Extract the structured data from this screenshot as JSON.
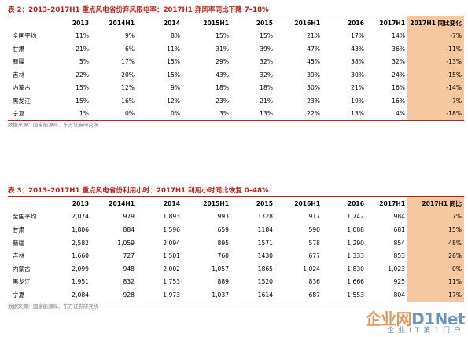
{
  "table1": {
    "title": "表 2：2013–2017H1 重点风电省份弃风限电率：2017H1 弃风率同比下降 7–18%",
    "header": [
      "",
      "2013",
      "2014H1",
      "2014",
      "2015H1",
      "2015",
      "2016H1",
      "2016",
      "2017H1",
      "2017H1 同比变化"
    ],
    "rows": [
      [
        "全国平均",
        "11%",
        "9%",
        "8%",
        "15%",
        "15%",
        "21%",
        "17%",
        "14%",
        "-7%"
      ],
      [
        "甘肃",
        "21%",
        "6%",
        "11%",
        "31%",
        "39%",
        "47%",
        "43%",
        "36%",
        "-11%"
      ],
      [
        "新疆",
        "5%",
        "17%",
        "15%",
        "29%",
        "32%",
        "45%",
        "38%",
        "32%",
        "-13%"
      ],
      [
        "吉林",
        "22%",
        "20%",
        "15%",
        "43%",
        "32%",
        "39%",
        "30%",
        "24%",
        "-15%"
      ],
      [
        "内蒙古",
        "15%",
        "12%",
        "9%",
        "18%",
        "18%",
        "30%",
        "21%",
        "16%",
        "-14%"
      ],
      [
        "黑龙江",
        "15%",
        "16%",
        "12%",
        "23%",
        "21%",
        "23%",
        "19%",
        "16%",
        "-7%"
      ],
      [
        "宁夏",
        "1%",
        "0%",
        "0%",
        "3%",
        "13%",
        "22%",
        "13%",
        "4%",
        "-18%"
      ]
    ],
    "source": "数据来源：国家能源局、东方证券研究所"
  },
  "table2": {
    "title": "表 3：2013–2017H1 重点风电省份利用小时：2017H1 利用小时同比恢复 0–48%",
    "header": [
      "",
      "2013",
      "2014H1",
      "2014",
      "2015H1",
      "2015",
      "2016H1",
      "2016",
      "2017H1",
      "2017H1 同比"
    ],
    "rows": [
      [
        "全国平均",
        "2,074",
        "979",
        "1,893",
        "993",
        "1728",
        "917",
        "1,742",
        "984",
        "7%"
      ],
      [
        "甘肃",
        "1,806",
        "884",
        "1,596",
        "659",
        "1184",
        "590",
        "1,088",
        "681",
        "15%"
      ],
      [
        "新疆",
        "2,582",
        "1,059",
        "2,094",
        "895",
        "1571",
        "578",
        "1,290",
        "854",
        "48%"
      ],
      [
        "吉林",
        "1,660",
        "727",
        "1,501",
        "760",
        "1430",
        "677",
        "1,333",
        "853",
        "26%"
      ],
      [
        "内蒙古",
        "2,099",
        "948",
        "2,002",
        "1,057",
        "1865",
        "1,024",
        "1,830",
        "1,023",
        "0%"
      ],
      [
        "黑龙江",
        "1,951",
        "832",
        "1,753",
        "889",
        "1520",
        "836",
        "1,666",
        "925",
        "11%"
      ],
      [
        "宁夏",
        "2,084",
        "928",
        "1,973",
        "1,037",
        "1614",
        "687",
        "1,553",
        "804",
        "17%"
      ]
    ],
    "source": "数据来源：国家能源局、东方证券研究所"
  },
  "watermark": {
    "logo_a": "企业网",
    "logo_b": "D1Net",
    "sub": "企业IT第1门户"
  }
}
